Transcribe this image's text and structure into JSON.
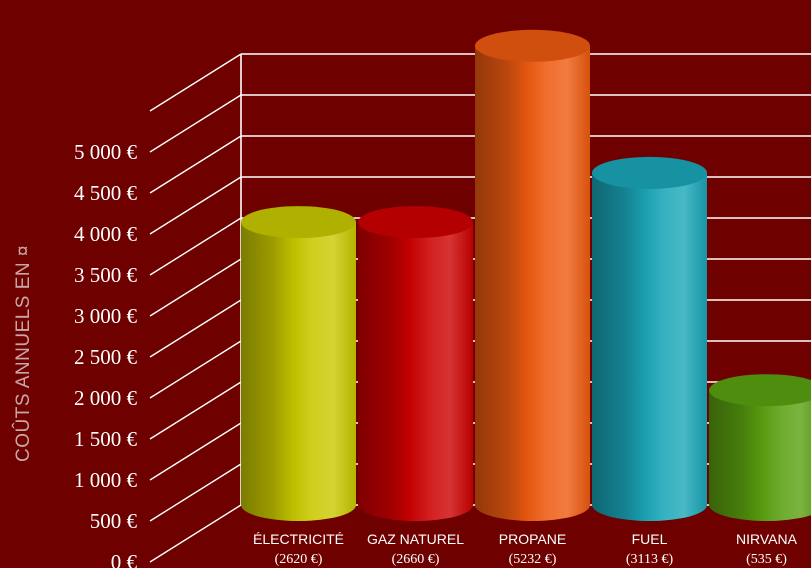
{
  "chart_data": {
    "type": "bar",
    "title": "",
    "ylabel": "COÛTS ANNUELS EN ¤",
    "ylim": [
      0,
      5500
    ],
    "y_ticks": [
      "0 €",
      "500 €",
      "1 000 €",
      "1 500 €",
      "2 000 €",
      "2 500 €",
      "3 000 €",
      "3 500 €",
      "4 000 €",
      "4 500 €",
      "5 000 €"
    ],
    "categories": [
      "ÉLECTRICITÉ",
      "GAZ NATUREL",
      "PROPANE",
      "FUEL",
      "NIRVANA"
    ],
    "value_labels": [
      "(2620  €)",
      "(2660  €)",
      "(5232  €)",
      "(3113  €)",
      "(535  €)"
    ],
    "values": [
      3450,
      3450,
      5600,
      4050,
      1400
    ],
    "colors": [
      "#c8c800",
      "#cc0000",
      "#ee5a10",
      "#1aa6b8",
      "#5aa010"
    ]
  }
}
